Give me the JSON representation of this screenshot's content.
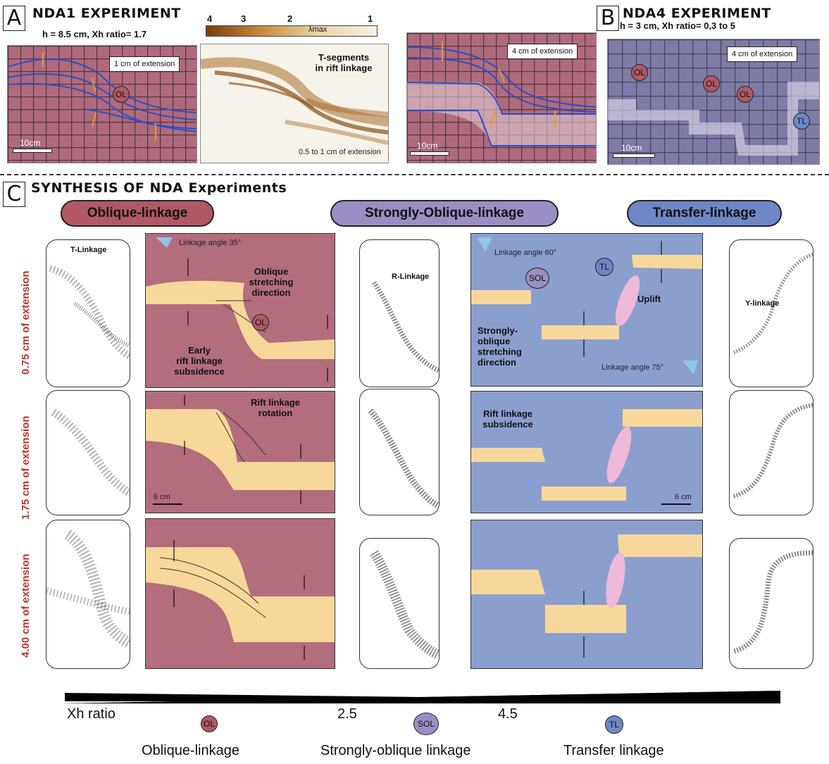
{
  "panelA": {
    "letter": "A",
    "title": "NDA1 EXPERIMENT",
    "subtitle": "h = 8.5 cm,  Xh ratio= 1.7",
    "photo1_ext": "1 cm of extension",
    "photo1_scale": "10cm",
    "badge": "OL",
    "colorbar_ticks": [
      "4",
      "3",
      "2",
      "1"
    ],
    "colorbar_label": "λmax",
    "colorbar_colors": [
      "#7a3d0c",
      "#f4f0e2"
    ],
    "strain_annotation": "T-segments\nin rift linkage",
    "strain_caption": "0.5 to 1 cm of extension",
    "photo3_ext": "4 cm of extension",
    "photo3_scale": "10cm"
  },
  "panelB": {
    "letter": "B",
    "title": "NDA4 EXPERIMENT",
    "subtitle": "h = 3 cm,  Xh ratio= 0,3 to 5",
    "photo_ext": "4 cm of extension",
    "photo_scale": "10cm",
    "badges": [
      "OL",
      "OL",
      "OL",
      "TL"
    ]
  },
  "panelC": {
    "letter": "C",
    "title": "SYNTHESIS OF NDA Experiments",
    "columns": [
      {
        "label": "Oblique-linkage",
        "color": "#b05866"
      },
      {
        "label": "Strongly-Oblique-linkage",
        "color": "#9b8ec4"
      },
      {
        "label": "Transfer-linkage",
        "color": "#6f87c6"
      }
    ],
    "rows": [
      "0.75 cm of extension",
      "1.75 cm of extension",
      "4.00 cm of extension"
    ],
    "thumb_labels": {
      "t": "T-Linkage",
      "r": "R-Linkage",
      "y": "Y-linkage"
    },
    "oblique": {
      "angle": "Linkage angle 35°",
      "stretch": "Oblique\nstretching\ndirection",
      "early": "Early\nrift linkage\nsubsidence",
      "rotation": "Rift linkage\nrotation",
      "scale": "6 cm",
      "badge": "OL"
    },
    "transfer": {
      "angle_top": "Linkage angle 60°",
      "angle_bottom": "Linkage angle  75°",
      "badge_sol": "SOL",
      "badge_tl": "TL",
      "uplift": "Uplift",
      "strong": "Strongly-\noblique\nstretching\ndirection",
      "subsidence": "Rift linkage\nsubsidence",
      "scale": "6 cm"
    },
    "signs": {
      "minus": "-",
      "plus": "+"
    }
  },
  "legend": {
    "xh": "Xh ratio",
    "v1": "2.5",
    "v2": "4.5",
    "names": [
      "Oblique-linkage",
      "Strongly-oblique linkage",
      "Transfer linkage"
    ],
    "badges": [
      "OL",
      "SOL",
      "TL"
    ]
  }
}
